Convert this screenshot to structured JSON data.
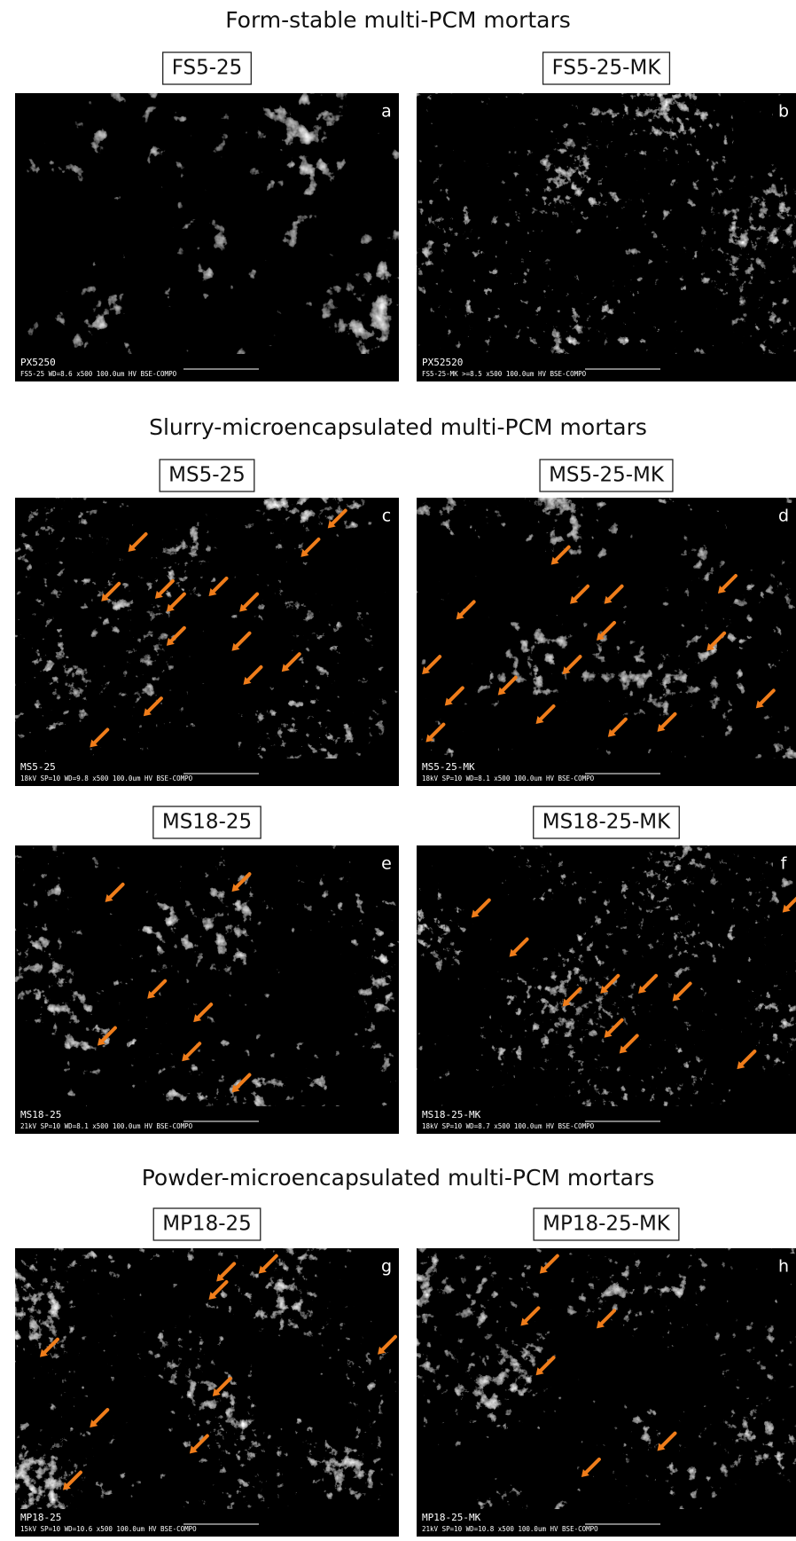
{
  "sections": [
    {
      "title": "Form-stable multi-PCM mortars",
      "panels": [
        {
          "label": "FS5-25",
          "letter": "a",
          "info_top": "PX5250",
          "info": "FS5-25  WD=8.6  x500   100.0um  HV   BSE-COMPO"
        },
        {
          "label": "FS5-25-MK",
          "letter": "b",
          "info_top": "PX52520",
          "info": "FS5-25-MK  >=8.5  x500   100.0um  HV   BSE-COMPO"
        }
      ]
    },
    {
      "title": "Slurry-microencapsulated multi-PCM mortars",
      "panels": [
        {
          "label": "MS5-25",
          "letter": "c",
          "info_top": "MS5-25",
          "info": "18kV  SP=10  WD=9.8  x500   100.0um  HV   BSE-COMPO"
        },
        {
          "label": "MS5-25-MK",
          "letter": "d",
          "info_top": "MS5-25-MK",
          "info": "18kV  SP=10  WD=8.1  x500   100.0um  HV   BSE-COMPO"
        },
        {
          "label": "MS18-25",
          "letter": "e",
          "info_top": "MS18-25",
          "info": "21kV  SP=10  WD=8.1  x500   100.0um  HV   BSE-COMPO"
        },
        {
          "label": "MS18-25-MK",
          "letter": "f",
          "info_top": "MS18-25-MK",
          "info": "18kV  SP=10  WD=8.7  x500   100.0um  HV   BSE-COMPO"
        }
      ]
    },
    {
      "title": "Powder-microencapsulated multi-PCM mortars",
      "panels": [
        {
          "label": "MP18-25",
          "letter": "g",
          "info_top": "MP18-25",
          "info": "15kV  SP=10  WD=10.6  x500   100.0um  HV   BSE-COMPO"
        },
        {
          "label": "MP18-25-MK",
          "letter": "h",
          "info_top": "MP18-25-MK",
          "info": "21kV  SP=10  WD=10.8  x500   100.0um  HV   BSE-COMPO"
        }
      ]
    }
  ]
}
